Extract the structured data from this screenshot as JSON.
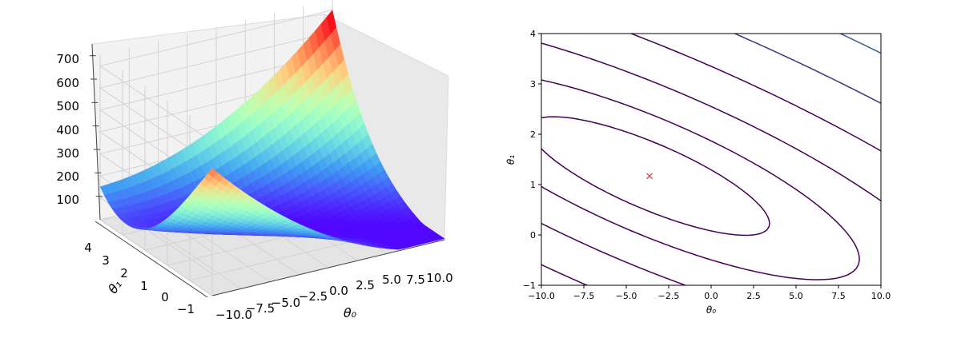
{
  "chart_data": [
    {
      "type": "surface",
      "xlabel": "θ₀",
      "ylabel": "θ₁",
      "x_ticks": [
        "−10.0",
        "−7.5",
        "−5.0",
        "−2.5",
        "0.0",
        "2.5",
        "5.0",
        "7.5",
        "10.0"
      ],
      "y_ticks": [
        "−1",
        "0",
        "1",
        "2",
        "3",
        "4"
      ],
      "z_ticks": [
        "100",
        "200",
        "300",
        "400",
        "500",
        "600",
        "700"
      ],
      "xlim": [
        -10,
        10
      ],
      "ylim": [
        -1,
        4
      ],
      "zlim": [
        0,
        750
      ],
      "colormap": "rainbow",
      "view": {
        "elevation": 15,
        "azimuth": -130
      },
      "grid": true,
      "surface_samples": {
        "theta0": [
          -10,
          0,
          10
        ],
        "theta1": [
          -1,
          1.5,
          4
        ],
        "cost": [
          [
            30,
            5,
            190
          ],
          [
            45,
            16,
            330
          ],
          [
            90,
            190,
            710
          ]
        ]
      }
    },
    {
      "type": "contour",
      "xlabel": "θ₀",
      "ylabel": "θ₁",
      "x_ticks": [
        "−10.0",
        "−7.5",
        "−5.0",
        "−2.5",
        "0.0",
        "2.5",
        "5.0",
        "7.5",
        "10.0"
      ],
      "y_ticks": [
        "−1",
        "0",
        "1",
        "2",
        "3",
        "4"
      ],
      "xlim": [
        -10,
        10
      ],
      "ylim": [
        -1,
        4
      ],
      "levels": [
        0.01,
        0.03,
        0.1,
        0.3,
        1,
        3,
        10,
        30,
        100,
        300,
        1000
      ],
      "level_colors": [
        "#440154",
        "#440154",
        "#440154",
        "#440154",
        "#440154",
        "#46307e",
        "#365c8d",
        "#277f8e",
        "#1fa187",
        "#4ac16d",
        "#fde725"
      ],
      "minimum": {
        "x": -3.63,
        "y": 1.17,
        "marker": "x",
        "color": "#e8403c"
      },
      "grid": false
    }
  ]
}
